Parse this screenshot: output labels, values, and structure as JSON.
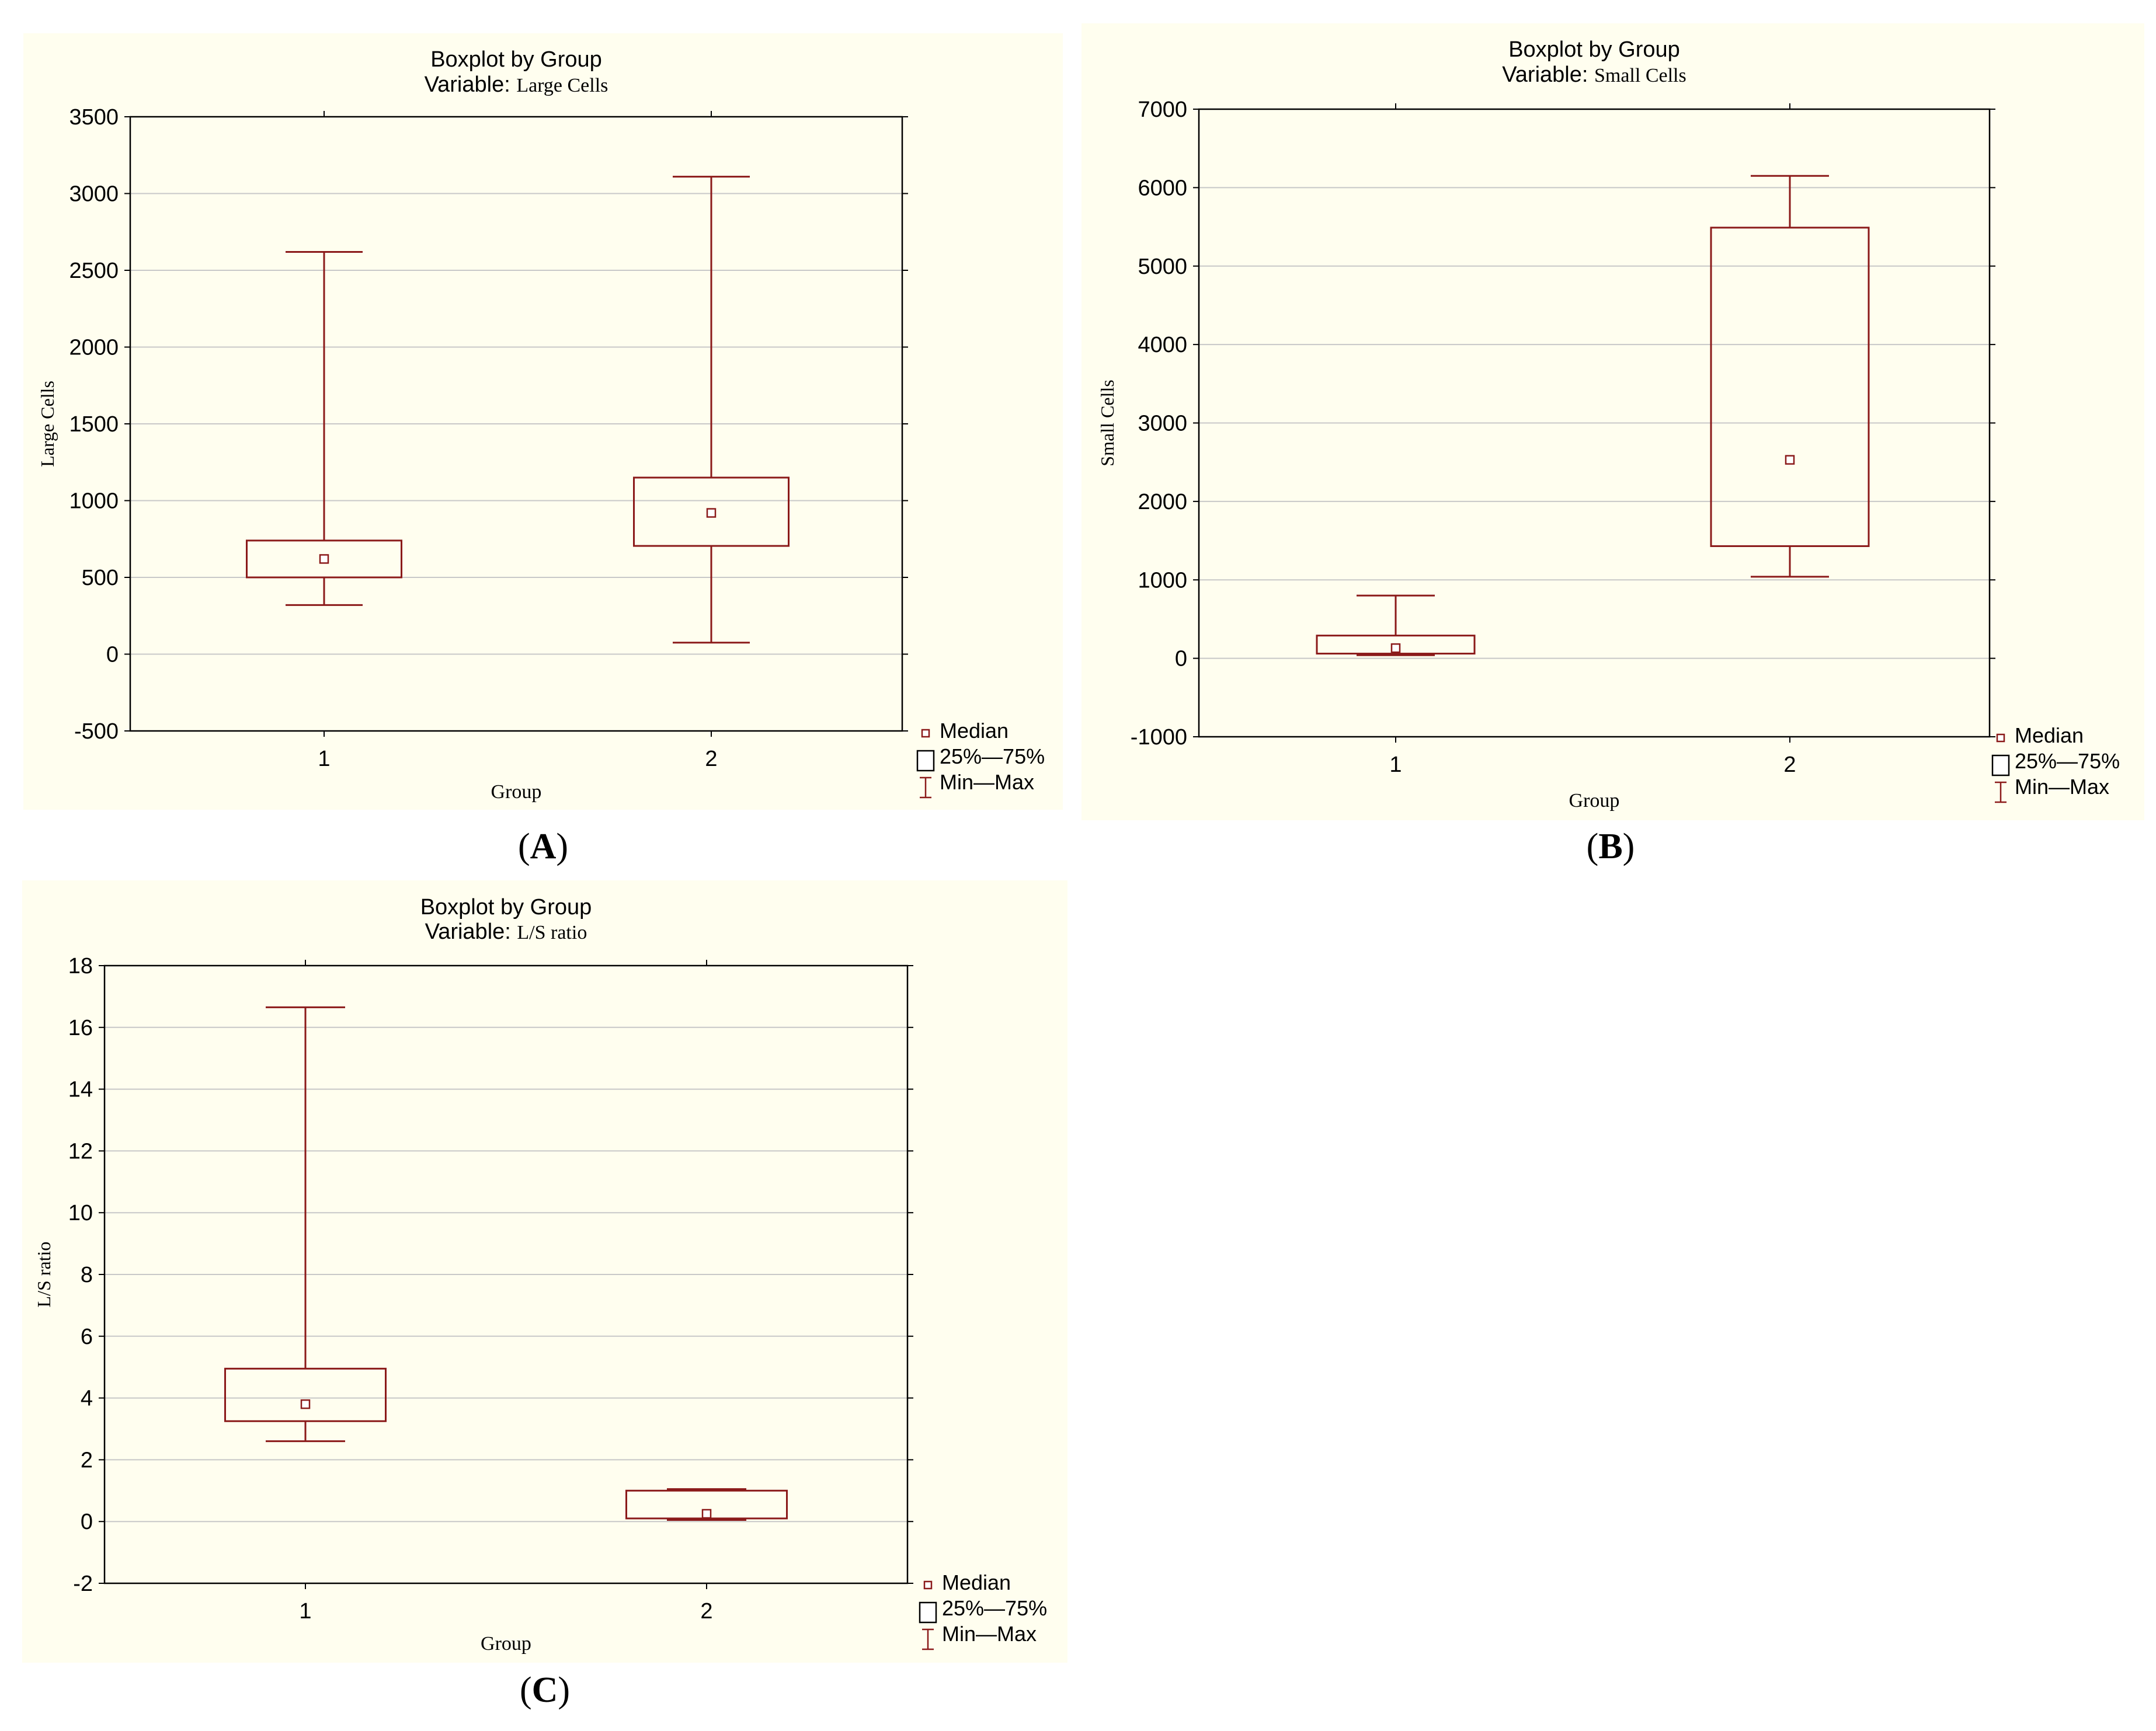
{
  "chart_data": [
    {
      "id": "A",
      "type": "boxplot",
      "title": "Boxplot by Group",
      "subtitle_prefix": "Variable:",
      "subtitle_variable": "Large Cells",
      "xlabel": "Group",
      "ylabel": "Large Cells",
      "ylim": [
        -500,
        3500
      ],
      "yticks": [
        -500,
        0,
        500,
        1000,
        1500,
        2000,
        2500,
        3000,
        3500
      ],
      "grid": true,
      "legend_position": "bottom-right",
      "categories": [
        "1",
        "2"
      ],
      "boxes": [
        {
          "group": "1",
          "min": 320,
          "q1": 500,
          "median": 620,
          "q3": 740,
          "max": 2620
        },
        {
          "group": "2",
          "min": 75,
          "q1": 705,
          "median": 920,
          "q3": 1150,
          "max": 3110
        }
      ],
      "panel_label": "A"
    },
    {
      "id": "B",
      "type": "boxplot",
      "title": "Boxplot by Group",
      "subtitle_prefix": "Variable:",
      "subtitle_variable": "Small Cells",
      "xlabel": "Group",
      "ylabel": "Small Cells",
      "ylim": [
        -1000,
        7000
      ],
      "yticks": [
        -1000,
        0,
        1000,
        2000,
        3000,
        4000,
        5000,
        6000,
        7000
      ],
      "grid": true,
      "legend_position": "bottom-right",
      "categories": [
        "1",
        "2"
      ],
      "boxes": [
        {
          "group": "1",
          "min": 40,
          "q1": 60,
          "median": 130,
          "q3": 290,
          "max": 800
        },
        {
          "group": "2",
          "min": 1040,
          "q1": 1430,
          "median": 2530,
          "q3": 5490,
          "max": 6150
        }
      ],
      "panel_label": "B"
    },
    {
      "id": "C",
      "type": "boxplot",
      "title": "Boxplot by Group",
      "subtitle_prefix": "Variable:",
      "subtitle_variable": "L/S ratio",
      "xlabel": "Group",
      "ylabel": "L/S ratio",
      "ylim": [
        -2,
        18
      ],
      "yticks": [
        -2,
        0,
        2,
        4,
        6,
        8,
        10,
        12,
        14,
        16,
        18
      ],
      "grid": true,
      "legend_position": "bottom-right",
      "categories": [
        "1",
        "2"
      ],
      "boxes": [
        {
          "group": "1",
          "min": 2.6,
          "q1": 3.25,
          "median": 3.8,
          "q3": 4.95,
          "max": 16.65
        },
        {
          "group": "2",
          "min": 0.05,
          "q1": 0.1,
          "median": 0.25,
          "q3": 1.0,
          "max": 1.05
        }
      ],
      "panel_label": "C"
    }
  ],
  "legend": {
    "median": "Median",
    "box": "25%—75%",
    "whisker": "Min—Max"
  },
  "colors": {
    "plot_stroke": "#8b1a1a",
    "panel_background": "#fffeef",
    "grid": "#c8c8c8"
  }
}
